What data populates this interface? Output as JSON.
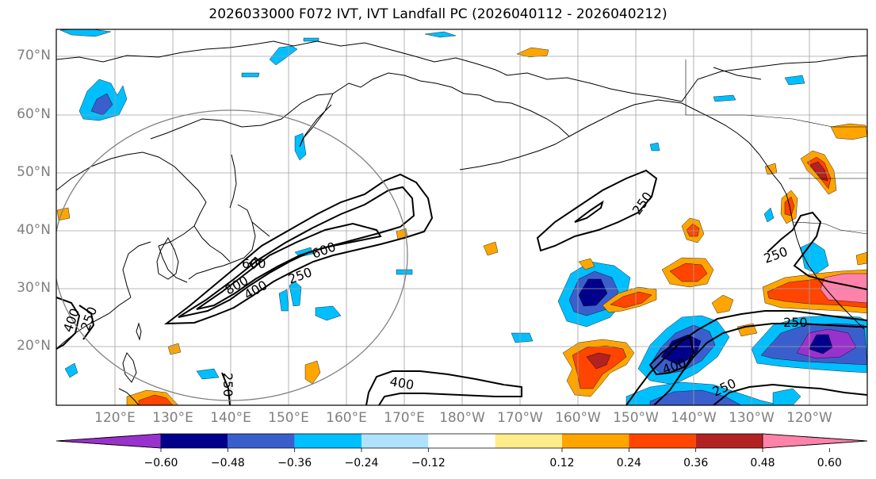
{
  "title": "2026033000 F072 IVT, IVT Landfall PC (2026040112 - 2026040212)",
  "lat_labels": [
    "70°N",
    "60°N",
    "50°N",
    "40°N",
    "30°N",
    "20°N"
  ],
  "lon_labels": [
    "120°E",
    "130°E",
    "140°E",
    "150°E",
    "160°E",
    "170°E",
    "180°W",
    "170°W",
    "160°W",
    "150°W",
    "140°W",
    "130°W",
    "120°W"
  ],
  "colorbar": {
    "ticks": [
      "−0.60",
      "−0.48",
      "−0.36",
      "−0.24",
      "−0.12",
      "0.12",
      "0.24",
      "0.36",
      "0.48",
      "0.60"
    ],
    "colors": [
      "#9932cc",
      "#00008b",
      "#3a5fcd",
      "#00bfff",
      "#b0e2ff",
      "#ffffff",
      "#ffec8b",
      "#ffa500",
      "#ff4500",
      "#b22222",
      "#ff82ab"
    ]
  },
  "contour_labels": [
    "250",
    "400",
    "600",
    "800",
    "600",
    "250",
    "400",
    "250",
    "250",
    "250",
    "400",
    "250",
    "400",
    "250",
    "250"
  ],
  "map_style": {
    "grid": true,
    "coastline_color": "#000000",
    "range_ring_color": "#808080"
  }
}
